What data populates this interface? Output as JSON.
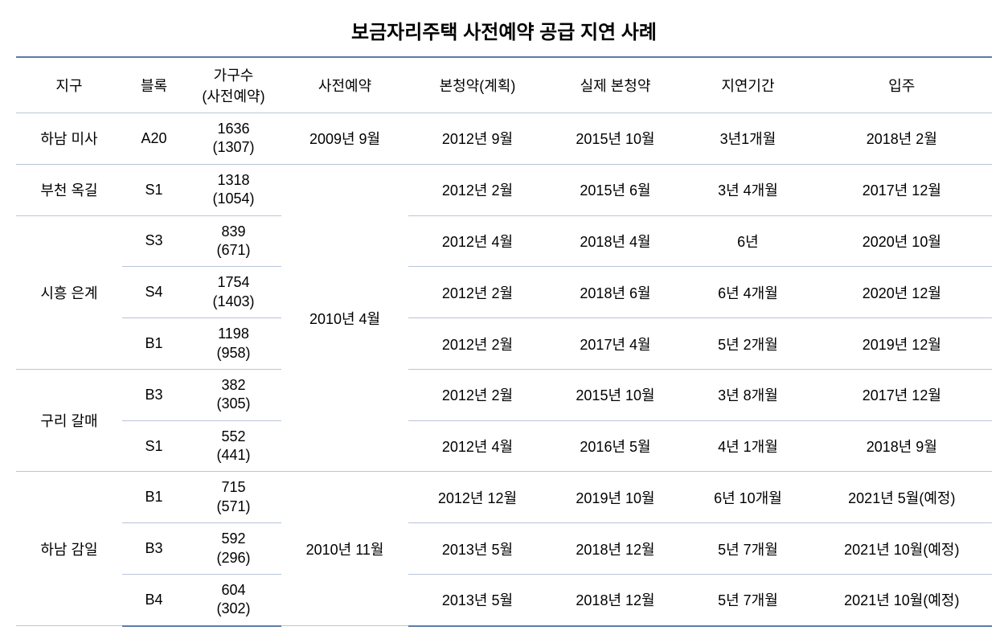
{
  "title": "보금자리주택 사전예약 공급 지연 사례",
  "headers": {
    "district": "지구",
    "block": "블록",
    "households": "가구수\n(사전예약)",
    "reservation": "사전예약",
    "plan": "본청약(계획)",
    "actual": "실제 본청약",
    "delay": "지연기간",
    "movein": "입주"
  },
  "rows": [
    {
      "district": "하남 미사",
      "block": "A20",
      "households_total": "1636",
      "households_reserved": "(1307)",
      "reservation": "2009년 9월",
      "plan": "2012년 9월",
      "actual": "2015년 10월",
      "delay": "3년1개월",
      "movein": "2018년 2월"
    },
    {
      "district": "부천 옥길",
      "block": "S1",
      "households_total": "1318",
      "households_reserved": "(1054)",
      "reservation": "2010년 4월",
      "plan": "2012년 2월",
      "actual": "2015년 6월",
      "delay": "3년 4개월",
      "movein": "2017년 12월"
    },
    {
      "district": "시흥 은계",
      "block": "S3",
      "households_total": "839",
      "households_reserved": "(671)",
      "plan": "2012년 4월",
      "actual": "2018년 4월",
      "delay": "6년",
      "movein": "2020년 10월"
    },
    {
      "block": "S4",
      "households_total": "1754",
      "households_reserved": "(1403)",
      "plan": "2012년 2월",
      "actual": "2018년 6월",
      "delay": "6년 4개월",
      "movein": "2020년 12월"
    },
    {
      "block": "B1",
      "households_total": "1198",
      "households_reserved": "(958)",
      "plan": "2012년 2월",
      "actual": "2017년 4월",
      "delay": "5년 2개월",
      "movein": "2019년 12월"
    },
    {
      "district": "구리 갈매",
      "block": "B3",
      "households_total": "382",
      "households_reserved": "(305)",
      "plan": "2012년 2월",
      "actual": "2015년 10월",
      "delay": "3년 8개월",
      "movein": "2017년 12월"
    },
    {
      "block": "S1",
      "households_total": "552",
      "households_reserved": "(441)",
      "plan": "2012년 4월",
      "actual": "2016년 5월",
      "delay": "4년 1개월",
      "movein": "2018년 9월"
    },
    {
      "district": "하남 감일",
      "block": "B1",
      "households_total": "715",
      "households_reserved": "(571)",
      "reservation": "2010년 11월",
      "plan": "2012년 12월",
      "actual": "2019년 10월",
      "delay": "6년 10개월",
      "movein": "2021년 5월(예정)"
    },
    {
      "block": "B3",
      "households_total": "592",
      "households_reserved": "(296)",
      "plan": "2013년 5월",
      "actual": "2018년 12월",
      "delay": "5년 7개월",
      "movein": "2021년 10월(예정)"
    },
    {
      "block": "B4",
      "households_total": "604",
      "households_reserved": "(302)",
      "plan": "2013년 5월",
      "actual": "2018년 12월",
      "delay": "5년 7개월",
      "movein": "2021년 10월(예정)"
    }
  ],
  "colors": {
    "border_main": "#5b7ca3",
    "border_cell": "#b8c5d6",
    "text": "#000000",
    "background": "#ffffff"
  },
  "typography": {
    "title_fontsize": 24,
    "cell_fontsize": 18,
    "font_family": "Malgun Gothic"
  }
}
